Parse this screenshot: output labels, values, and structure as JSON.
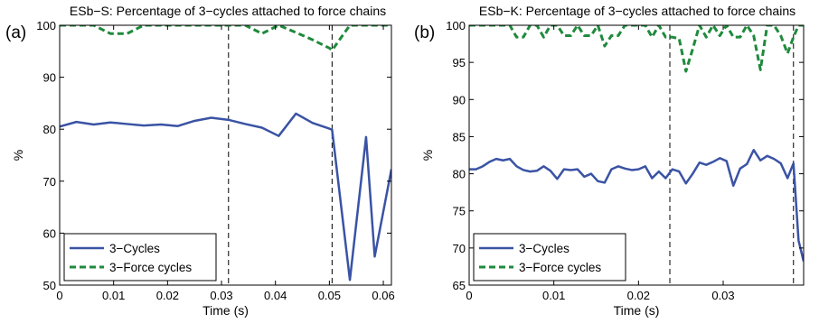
{
  "chart_data": [
    {
      "type": "line",
      "panel_label": "(a)",
      "title": "ESb−S: Percentage of 3−cycles attached to force chains",
      "xlabel": "Time (s)",
      "ylabel": "%",
      "xlim": [
        0,
        0.0615
      ],
      "ylim": [
        50,
        100
      ],
      "xticks": [
        0,
        0.01,
        0.02,
        0.03,
        0.04,
        0.05,
        0.06
      ],
      "xtick_labels": [
        "0",
        "0.01",
        "0.02",
        "0.03",
        "0.04",
        "0.05",
        "0.06"
      ],
      "yticks": [
        50,
        60,
        70,
        80,
        90,
        100
      ],
      "ytick_labels": [
        "50",
        "60",
        "70",
        "80",
        "90",
        "100"
      ],
      "vlines": [
        0.0313,
        0.0505
      ],
      "grid": false,
      "legend_position": "bottom-left",
      "series": [
        {
          "name": "3−Cycles",
          "color": "#3a53a4",
          "style": "solid",
          "x": [
            0,
            0.0031,
            0.0063,
            0.0094,
            0.0125,
            0.0156,
            0.0188,
            0.0219,
            0.025,
            0.0281,
            0.0313,
            0.0344,
            0.0375,
            0.0406,
            0.0438,
            0.0469,
            0.05,
            0.0505,
            0.0538,
            0.0568,
            0.0584,
            0.0615
          ],
          "y": [
            80.5,
            81.4,
            80.9,
            81.3,
            81.0,
            80.7,
            80.9,
            80.6,
            81.6,
            82.2,
            81.8,
            81.0,
            80.3,
            78.7,
            83.0,
            81.2,
            80.1,
            79.9,
            51.0,
            78.5,
            55.5,
            72.3
          ]
        },
        {
          "name": "3−Force cycles",
          "color": "#1f8a3c",
          "style": "dashed",
          "x": [
            0,
            0.0031,
            0.0063,
            0.0094,
            0.0125,
            0.0156,
            0.0188,
            0.0219,
            0.025,
            0.0281,
            0.0313,
            0.0344,
            0.0375,
            0.0406,
            0.0438,
            0.0469,
            0.05,
            0.0505,
            0.0538,
            0.0568,
            0.0584,
            0.0615
          ],
          "y": [
            100,
            100,
            100,
            98.4,
            98.4,
            100,
            100,
            100,
            100,
            100,
            100,
            100,
            98.4,
            100,
            98.6,
            97.2,
            95.6,
            95.2,
            100,
            100,
            100,
            100
          ]
        }
      ]
    },
    {
      "type": "line",
      "panel_label": "(b)",
      "title": "ESb−K: Percentage of 3−cycles attached to force chains",
      "xlabel": "Time (s)",
      "ylabel": "%",
      "xlim": [
        0,
        0.0395
      ],
      "ylim": [
        65,
        100
      ],
      "xticks": [
        0,
        0.01,
        0.02,
        0.03
      ],
      "xtick_labels": [
        "0",
        "0.01",
        "0.02",
        "0.03"
      ],
      "yticks": [
        65,
        70,
        75,
        80,
        85,
        90,
        95,
        100
      ],
      "ytick_labels": [
        "65",
        "70",
        "75",
        "80",
        "85",
        "90",
        "95",
        "100"
      ],
      "vlines": [
        0.0237,
        0.0383
      ],
      "grid": false,
      "legend_position": "bottom-left",
      "series": [
        {
          "name": "3−Cycles",
          "color": "#3a53a4",
          "style": "solid",
          "x": [
            0,
            0.0008,
            0.0016,
            0.0024,
            0.0032,
            0.004,
            0.0048,
            0.0056,
            0.0064,
            0.0072,
            0.008,
            0.0088,
            0.0096,
            0.0104,
            0.0112,
            0.012,
            0.0128,
            0.0136,
            0.0144,
            0.0152,
            0.016,
            0.0168,
            0.0176,
            0.0184,
            0.0192,
            0.02,
            0.0208,
            0.0216,
            0.0224,
            0.0232,
            0.024,
            0.0248,
            0.0256,
            0.0264,
            0.0272,
            0.028,
            0.0288,
            0.0296,
            0.0304,
            0.0312,
            0.032,
            0.0328,
            0.0336,
            0.0344,
            0.0352,
            0.036,
            0.0368,
            0.0376,
            0.0383,
            0.0389,
            0.0395
          ],
          "y": [
            80.6,
            80.6,
            81.0,
            81.6,
            82.0,
            81.8,
            82.0,
            81.0,
            80.5,
            80.3,
            80.4,
            81.0,
            80.4,
            79.3,
            80.6,
            80.5,
            80.6,
            79.6,
            80.0,
            79.0,
            78.8,
            80.6,
            81.0,
            80.7,
            80.5,
            80.6,
            81.0,
            79.4,
            80.3,
            79.4,
            80.6,
            80.3,
            78.7,
            80.0,
            81.5,
            81.2,
            81.6,
            82.1,
            81.7,
            78.4,
            80.7,
            81.3,
            83.2,
            81.8,
            82.4,
            82.0,
            81.4,
            79.4,
            81.4,
            71.0,
            68.2
          ]
        },
        {
          "name": "3−Force cycles",
          "color": "#1f8a3c",
          "style": "dashed",
          "x": [
            0,
            0.0008,
            0.0016,
            0.0024,
            0.0032,
            0.004,
            0.0048,
            0.0056,
            0.0064,
            0.0072,
            0.008,
            0.0088,
            0.0096,
            0.0104,
            0.0112,
            0.012,
            0.0128,
            0.0136,
            0.0144,
            0.0152,
            0.016,
            0.0168,
            0.0176,
            0.0184,
            0.0192,
            0.02,
            0.0208,
            0.0216,
            0.0224,
            0.0232,
            0.024,
            0.0248,
            0.0256,
            0.0264,
            0.0272,
            0.028,
            0.0288,
            0.0296,
            0.0304,
            0.0312,
            0.032,
            0.0328,
            0.0336,
            0.0344,
            0.0352,
            0.036,
            0.0368,
            0.0376,
            0.0383,
            0.0389,
            0.0395
          ],
          "y": [
            100,
            100,
            100,
            100,
            100,
            100,
            100,
            98.4,
            98.4,
            100,
            100,
            98.4,
            100,
            100,
            98.6,
            98.6,
            100,
            98.6,
            98.6,
            100,
            97.2,
            98.6,
            98.6,
            100,
            100,
            100,
            100,
            98.4,
            100,
            98.4,
            98.4,
            98.2,
            93.8,
            96.8,
            100,
            98.4,
            100,
            98.6,
            100,
            98.4,
            98.4,
            100,
            98.6,
            94.0,
            100,
            100,
            98.6,
            96.2,
            98.4,
            100,
            100
          ]
        }
      ]
    }
  ]
}
